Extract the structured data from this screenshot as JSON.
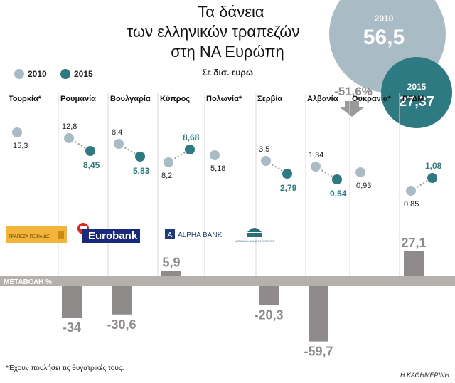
{
  "title_lines": [
    "Τα δάνεια",
    "των ελληνικών τραπεζών",
    "στη ΝΑ Ευρώπη"
  ],
  "unit_note": "Σε δισ. ευρώ",
  "legend": [
    {
      "label": "2010",
      "color": "#a9bcc6"
    },
    {
      "label": "2015",
      "color": "#2e7a82"
    }
  ],
  "totals": {
    "t2010": {
      "year": "2010",
      "value": "56,5",
      "color": "#a9bcc6"
    },
    "t2015": {
      "year": "2015",
      "value": "27,37",
      "color": "#2e7a82"
    },
    "change": "-51,6%"
  },
  "banks": [
    "ΤΡΑΠΕΖΑ ΠΕΙΡΑΙΩΣ",
    "Eurobank",
    "ALPHA BANK",
    "NATIONAL BANK OF GREECE"
  ],
  "change_axis_label": "ΜΕΤΑΒΟΛΗ %",
  "footnote": "*Έχουν πουλήσει τις θυγατρικές τους.",
  "source": "Η ΚΑΘΗΜΕΡΙΝΗ",
  "chart_data": {
    "type": "dot-and-bar",
    "title": "Τα δάνεια των ελληνικών τραπεζών στη ΝΑ Ευρώπη",
    "subtitle": "Σε δισ. ευρώ",
    "categories": [
      "Τουρκία*",
      "Ρουμανία",
      "Βουλγαρία",
      "Κύπρος",
      "Πολωνία*",
      "Σερβία",
      "Αλβανία",
      "Ουκρανία*",
      "ΠΓΔΜ"
    ],
    "series": [
      {
        "name": "2010",
        "values": [
          15.3,
          12.8,
          8.4,
          8.2,
          5.18,
          3.5,
          1.34,
          0.93,
          0.85
        ],
        "labels": [
          "15,3",
          "12,8",
          "8,4",
          "8,2",
          "5,18",
          "3,5",
          "1,34",
          "0,93",
          "0,85"
        ]
      },
      {
        "name": "2015",
        "values": [
          null,
          8.45,
          5.83,
          8.68,
          null,
          2.79,
          0.54,
          null,
          1.08
        ],
        "labels": [
          "",
          "8,45",
          "5,83",
          "8,68",
          "",
          "2,79",
          "0,54",
          "",
          "1,08"
        ]
      }
    ],
    "change_pct": {
      "name": "ΜΕΤΑΒΟΛΗ %",
      "values": [
        null,
        -34,
        -30.6,
        5.9,
        null,
        -20.3,
        -59.7,
        null,
        27.1
      ],
      "labels": [
        "",
        "-34",
        "-30,6",
        "5,9",
        "",
        "-20,3",
        "-59,7",
        "",
        "27,1"
      ]
    }
  }
}
